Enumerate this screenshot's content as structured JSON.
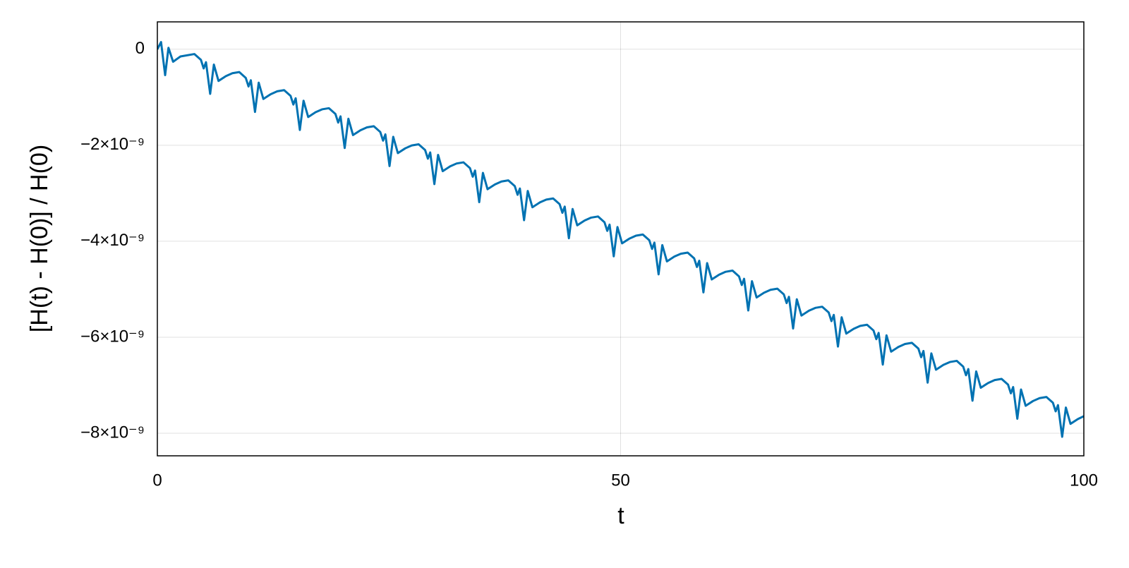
{
  "chart_data": {
    "type": "line",
    "xlabel": "t",
    "ylabel": "[H(t) - H(0)] / H(0)",
    "color": "#0072b2",
    "grid": true,
    "xlim": [
      0,
      100
    ],
    "xticks": [
      0,
      50,
      100
    ],
    "ylim": [
      -8.47e-09,
      5.7e-10
    ],
    "yticks": [
      0,
      {
        "value": -2e-09,
        "label": "−2×10⁻⁹"
      },
      {
        "value": -4e-09,
        "label": "−4×10⁻⁹"
      },
      {
        "value": -6e-09,
        "label": "−6×10⁻⁹"
      },
      {
        "value": -8e-09,
        "label": "−8×10⁻⁹"
      }
    ],
    "x": [
      0,
      0.4,
      0.84,
      1.2,
      1.7,
      2.5,
      4,
      4.7,
      5,
      5.25,
      5.7,
      6.1,
      6.6,
      7.4,
      8.1,
      8.84,
      9.54,
      9.84,
      10.09,
      10.54,
      10.94,
      11.44,
      12.24,
      12.94,
      13.68,
      14.38,
      14.68,
      14.93,
      15.38,
      15.78,
      16.28,
      17.08,
      17.78,
      18.52,
      19.22,
      19.52,
      19.77,
      20.22,
      20.62,
      21.12,
      21.92,
      22.62,
      23.36,
      24.06,
      24.36,
      24.61,
      25.06,
      25.46,
      25.96,
      26.76,
      27.46,
      28.2,
      28.9,
      29.2,
      29.45,
      29.9,
      30.3,
      30.8,
      31.6,
      32.3,
      33.04,
      33.74,
      34.04,
      34.29,
      34.74,
      35.14,
      35.64,
      36.44,
      37.14,
      37.88,
      38.58,
      38.88,
      39.13,
      39.58,
      39.98,
      40.48,
      41.28,
      41.98,
      42.72,
      43.42,
      43.72,
      43.97,
      44.42,
      44.82,
      45.32,
      46.12,
      46.82,
      47.56,
      48.26,
      48.56,
      48.81,
      49.26,
      49.66,
      50.16,
      50.96,
      51.66,
      52.4,
      53.1,
      53.4,
      53.65,
      54.1,
      54.5,
      55,
      55.8,
      56.5,
      57.24,
      57.94,
      58.24,
      58.49,
      58.94,
      59.34,
      59.84,
      60.64,
      61.34,
      62.08,
      62.78,
      63.08,
      63.33,
      63.78,
      64.18,
      64.68,
      65.48,
      66.18,
      66.92,
      67.62,
      67.92,
      68.17,
      68.62,
      69.02,
      69.52,
      70.32,
      71.02,
      71.76,
      72.46,
      72.76,
      73.01,
      73.46,
      73.86,
      74.36,
      75.16,
      75.86,
      76.6,
      77.3,
      77.6,
      77.85,
      78.3,
      78.7,
      79.2,
      80,
      80.7,
      81.44,
      82.14,
      82.44,
      82.69,
      83.14,
      83.54,
      84.04,
      84.84,
      85.54,
      86.28,
      86.98,
      87.28,
      87.53,
      87.98,
      88.38,
      88.88,
      89.68,
      90.38,
      91.12,
      91.82,
      92.12,
      92.37,
      92.82,
      93.22,
      93.72,
      94.52,
      95.22,
      95.96,
      96.66,
      96.96,
      97.21,
      97.66,
      98.06,
      98.56,
      99.36,
      100
    ],
    "values": [
      0,
      1.5e-10,
      -5.4e-10,
      3e-11,
      -2.6e-10,
      -1.5e-10,
      -1e-10,
      -2.2e-10,
      -4e-10,
      -2.7e-10,
      -9.3e-10,
      -3.2e-10,
      -6.6e-10,
      -5.6e-10,
      -5e-10,
      -4.76e-10,
      -5.96e-10,
      -7.76e-10,
      -6.46e-10,
      -1.306e-09,
      -6.96e-10,
      -1.036e-09,
      -9.36e-10,
      -8.76e-10,
      -8.52e-10,
      -9.72e-10,
      -1.152e-09,
      -1.022e-09,
      -1.682e-09,
      -1.072e-09,
      -1.412e-09,
      -1.312e-09,
      -1.252e-09,
      -1.228e-09,
      -1.348e-09,
      -1.528e-09,
      -1.398e-09,
      -2.058e-09,
      -1.448e-09,
      -1.788e-09,
      -1.688e-09,
      -1.628e-09,
      -1.604e-09,
      -1.724e-09,
      -1.904e-09,
      -1.774e-09,
      -2.434e-09,
      -1.824e-09,
      -2.164e-09,
      -2.064e-09,
      -2.004e-09,
      -1.98e-09,
      -2.1e-09,
      -2.28e-09,
      -2.15e-09,
      -2.81e-09,
      -2.2e-09,
      -2.54e-09,
      -2.44e-09,
      -2.38e-09,
      -2.356e-09,
      -2.476e-09,
      -2.656e-09,
      -2.526e-09,
      -3.186e-09,
      -2.576e-09,
      -2.916e-09,
      -2.816e-09,
      -2.756e-09,
      -2.732e-09,
      -2.852e-09,
      -3.032e-09,
      -2.902e-09,
      -3.562e-09,
      -2.952e-09,
      -3.292e-09,
      -3.192e-09,
      -3.132e-09,
      -3.108e-09,
      -3.228e-09,
      -3.408e-09,
      -3.278e-09,
      -3.938e-09,
      -3.328e-09,
      -3.668e-09,
      -3.568e-09,
      -3.508e-09,
      -3.484e-09,
      -3.604e-09,
      -3.784e-09,
      -3.654e-09,
      -4.314e-09,
      -3.704e-09,
      -4.044e-09,
      -3.944e-09,
      -3.884e-09,
      -3.86e-09,
      -3.98e-09,
      -4.16e-09,
      -4.03e-09,
      -4.69e-09,
      -4.08e-09,
      -4.42e-09,
      -4.32e-09,
      -4.26e-09,
      -4.236e-09,
      -4.356e-09,
      -4.536e-09,
      -4.406e-09,
      -5.066e-09,
      -4.456e-09,
      -4.796e-09,
      -4.696e-09,
      -4.636e-09,
      -4.612e-09,
      -4.732e-09,
      -4.912e-09,
      -4.782e-09,
      -5.442e-09,
      -4.832e-09,
      -5.172e-09,
      -5.072e-09,
      -5.012e-09,
      -4.988e-09,
      -5.108e-09,
      -5.288e-09,
      -5.158e-09,
      -5.818e-09,
      -5.208e-09,
      -5.548e-09,
      -5.448e-09,
      -5.388e-09,
      -5.364e-09,
      -5.484e-09,
      -5.664e-09,
      -5.534e-09,
      -6.194e-09,
      -5.584e-09,
      -5.924e-09,
      -5.824e-09,
      -5.764e-09,
      -5.74e-09,
      -5.86e-09,
      -6.04e-09,
      -5.91e-09,
      -6.57e-09,
      -5.96e-09,
      -6.3e-09,
      -6.2e-09,
      -6.14e-09,
      -6.116e-09,
      -6.236e-09,
      -6.416e-09,
      -6.286e-09,
      -6.946e-09,
      -6.336e-09,
      -6.676e-09,
      -6.576e-09,
      -6.516e-09,
      -6.492e-09,
      -6.612e-09,
      -6.792e-09,
      -6.662e-09,
      -7.322e-09,
      -6.712e-09,
      -7.052e-09,
      -6.952e-09,
      -6.892e-09,
      -6.868e-09,
      -6.988e-09,
      -7.168e-09,
      -7.038e-09,
      -7.698e-09,
      -7.088e-09,
      -7.428e-09,
      -7.328e-09,
      -7.268e-09,
      -7.244e-09,
      -7.364e-09,
      -7.544e-09,
      -7.414e-09,
      -8.074e-09,
      -7.464e-09,
      -7.804e-09,
      -7.704e-09,
      -7.644e-09
    ]
  }
}
